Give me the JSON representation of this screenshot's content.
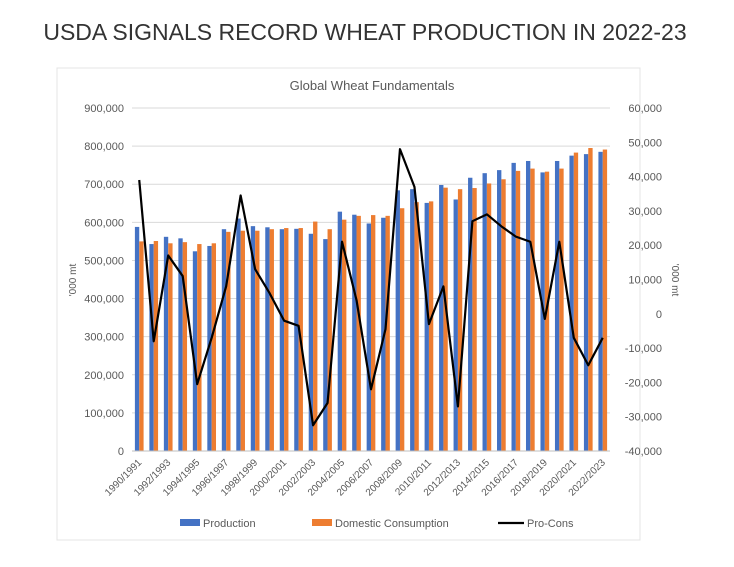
{
  "header": {
    "title": "USDA SIGNALS RECORD WHEAT PRODUCTION IN 2022-23"
  },
  "chart_data": {
    "type": "bar-line",
    "title": "Global Wheat Fundamentals",
    "y_label": "'000 mt",
    "y2_label": "'000 mt",
    "categories": [
      "1990/1991",
      null,
      "1992/1993",
      null,
      "1994/1995",
      null,
      "1996/1997",
      null,
      "1998/1999",
      null,
      "2000/2001",
      null,
      "2002/2003",
      null,
      "2004/2005",
      null,
      "2006/2007",
      null,
      "2008/2009",
      null,
      "2010/2011",
      null,
      "2012/2013",
      null,
      "2014/2015",
      null,
      "2016/2017",
      null,
      "2018/2019",
      null,
      "2020/2021",
      null,
      "2022/2023"
    ],
    "series": [
      {
        "name": "Production",
        "color": "#4472c4",
        "kind": "bar",
        "values": [
          588000,
          543000,
          562000,
          558000,
          524000,
          538000,
          582000,
          610000,
          590000,
          587000,
          582000,
          583000,
          570000,
          556000,
          628000,
          620000,
          597000,
          612000,
          684000,
          687000,
          651000,
          698000,
          660000,
          717000,
          729000,
          737000,
          756000,
          761000,
          731000,
          761000,
          775000,
          779000,
          785000
        ]
      },
      {
        "name": "Domestic Consumption",
        "color": "#ed7d31",
        "kind": "bar",
        "values": [
          550000,
          551000,
          545000,
          548000,
          543000,
          545000,
          575000,
          578000,
          578000,
          582000,
          585000,
          585000,
          602000,
          582000,
          607000,
          617000,
          619000,
          617000,
          637000,
          653000,
          655000,
          691000,
          687000,
          690000,
          702000,
          713000,
          735000,
          741000,
          733000,
          741000,
          783000,
          795000,
          791000
        ]
      },
      {
        "name": "Pro-Cons",
        "color": "#000000",
        "kind": "line",
        "axis": "y2",
        "values": [
          39000,
          -8000,
          17000,
          11000,
          -20500,
          -7000,
          8000,
          34500,
          13000,
          6000,
          -2000,
          -3500,
          -32500,
          -26000,
          21000,
          4000,
          -22000,
          -4500,
          48000,
          37000,
          -3000,
          8000,
          -27000,
          27000,
          29000,
          25500,
          22500,
          21000,
          -1500,
          21000,
          -7000,
          -15000,
          -7000
        ]
      }
    ],
    "ylim": [
      0,
      900000
    ],
    "yticks": [
      0,
      {
        "value": 100000,
        "label": "100,000"
      },
      {
        "value": 200000,
        "label": "200,000"
      },
      {
        "value": 300000,
        "label": "300,000"
      },
      {
        "value": 400000,
        "label": "400,000"
      },
      {
        "value": 500000,
        "label": "500,000"
      },
      {
        "value": 600000,
        "label": "600,000"
      },
      {
        "value": 700000,
        "label": "700,000"
      },
      {
        "value": 800000,
        "label": "800,000"
      },
      {
        "value": 900000,
        "label": "900,000"
      }
    ],
    "y2lim": [
      -40000,
      60000
    ],
    "y2ticks": [
      {
        "value": -40000,
        "label": "-40,000"
      },
      {
        "value": -30000,
        "label": "-30,000"
      },
      {
        "value": -20000,
        "label": "-20,000"
      },
      {
        "value": -10000,
        "label": "-10,000"
      },
      0,
      {
        "value": 10000,
        "label": "10,000"
      },
      {
        "value": 20000,
        "label": "20,000"
      },
      {
        "value": 30000,
        "label": "30,000"
      },
      {
        "value": 40000,
        "label": "40,000"
      },
      {
        "value": 50000,
        "label": "50,000"
      },
      {
        "value": 60000,
        "label": "60,000"
      }
    ],
    "grid": true,
    "legend": "bottom"
  }
}
